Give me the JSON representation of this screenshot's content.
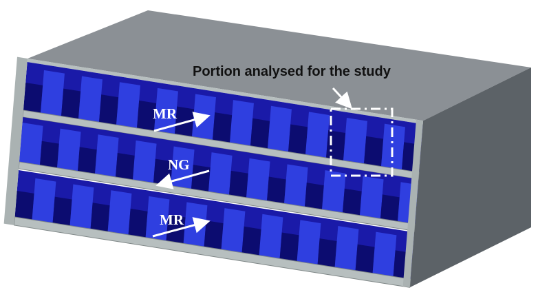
{
  "annotation": "Portion analysed for the study",
  "flows": [
    {
      "label": "MR"
    },
    {
      "label": "NG"
    },
    {
      "label": "MR"
    }
  ]
}
